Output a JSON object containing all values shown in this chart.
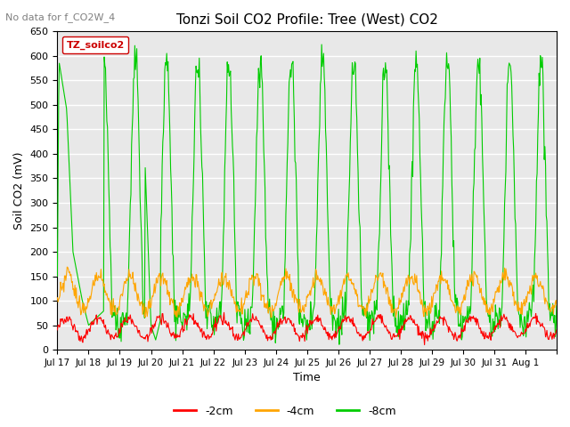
{
  "title": "Tonzi Soil CO2 Profile: Tree (West) CO2",
  "nodata_text": "No data for f_CO2W_4",
  "xlabel": "Time",
  "ylabel": "Soil CO2 (mV)",
  "ylim": [
    0,
    650
  ],
  "yticks": [
    0,
    50,
    100,
    150,
    200,
    250,
    300,
    350,
    400,
    450,
    500,
    550,
    600,
    650
  ],
  "legend_label": "TZ_soilco2",
  "line_labels": [
    "-2cm",
    "-4cm",
    "-8cm"
  ],
  "line_colors": [
    "#ff0000",
    "#ffa500",
    "#00cc00"
  ],
  "bg_color": "#ffffff",
  "plot_bg_color": "#e8e8e8",
  "grid_color": "#ffffff",
  "x_tick_positions": [
    0,
    1,
    2,
    3,
    4,
    5,
    6,
    7,
    8,
    9,
    10,
    11,
    12,
    13,
    14,
    15,
    16
  ],
  "x_tick_labels": [
    "Jul 17",
    "Jul 18",
    "Jul 19",
    "Jul 20",
    "Jul 21",
    "Jul 22",
    "Jul 23",
    "Jul 24",
    "Jul 25",
    "Jul 26",
    "Jul 27",
    "Jul 28",
    "Jul 29",
    "Jul 30",
    "Jul 31",
    "Aug 1",
    ""
  ]
}
